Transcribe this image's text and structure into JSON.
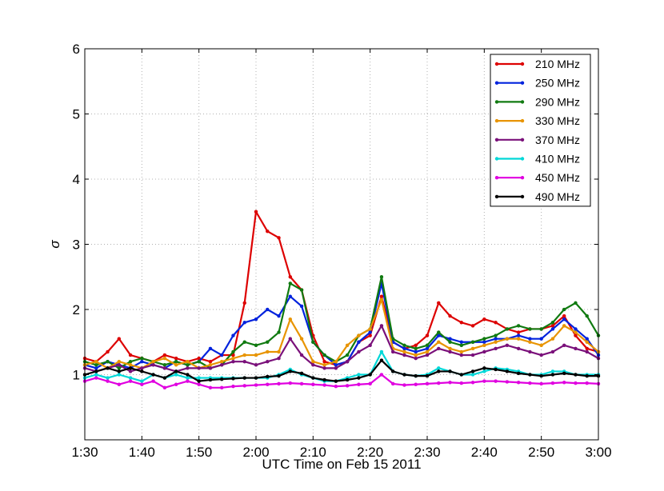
{
  "chart_data": {
    "type": "line",
    "title": "",
    "xlabel": "UTC Time on Feb 15 2011",
    "ylabel": "σ",
    "xlim": [
      0,
      90
    ],
    "ylim": [
      0,
      6
    ],
    "xticks": [
      0,
      10,
      20,
      30,
      40,
      50,
      60,
      70,
      80,
      90
    ],
    "xtick_labels": [
      "1:30",
      "1:40",
      "1:50",
      "2:00",
      "2:10",
      "2:20",
      "2:30",
      "2:40",
      "2:50",
      "3:00"
    ],
    "yticks": [
      1,
      2,
      3,
      4,
      5,
      6
    ],
    "ytick_labels": [
      "1",
      "2",
      "3",
      "4",
      "5",
      "6"
    ],
    "grid": true,
    "legend_position": "top-right",
    "x_units": "minutes after 1:30 UTC",
    "series": [
      {
        "name": "210 MHz",
        "color": "#dd0000",
        "x": [
          0,
          2,
          4,
          6,
          8,
          10,
          12,
          14,
          16,
          18,
          20,
          22,
          24,
          26,
          28,
          30,
          32,
          34,
          36,
          38,
          40,
          42,
          44,
          46,
          48,
          50,
          52,
          54,
          56,
          58,
          60,
          62,
          64,
          66,
          68,
          70,
          72,
          74,
          76,
          78,
          80,
          82,
          84,
          86,
          88,
          90
        ],
        "y": [
          1.25,
          1.2,
          1.35,
          1.55,
          1.3,
          1.25,
          1.2,
          1.3,
          1.25,
          1.2,
          1.25,
          1.2,
          1.3,
          1.3,
          2.1,
          3.5,
          3.2,
          3.1,
          2.5,
          2.3,
          1.6,
          1.2,
          1.15,
          1.2,
          1.5,
          1.6,
          2.2,
          1.5,
          1.4,
          1.45,
          1.6,
          2.1,
          1.9,
          1.8,
          1.75,
          1.85,
          1.8,
          1.7,
          1.65,
          1.7,
          1.7,
          1.75,
          1.9,
          1.6,
          1.4,
          1.35
        ]
      },
      {
        "name": "250 MHz",
        "color": "#0022dd",
        "x": [
          0,
          2,
          4,
          6,
          8,
          10,
          12,
          14,
          16,
          18,
          20,
          22,
          24,
          26,
          28,
          30,
          32,
          34,
          36,
          38,
          40,
          42,
          44,
          46,
          48,
          50,
          52,
          54,
          56,
          58,
          60,
          62,
          64,
          66,
          68,
          70,
          72,
          74,
          76,
          78,
          80,
          82,
          84,
          86,
          88,
          90
        ],
        "y": [
          1.15,
          1.1,
          1.2,
          1.15,
          1.1,
          1.2,
          1.15,
          1.1,
          1.2,
          1.15,
          1.2,
          1.4,
          1.3,
          1.6,
          1.8,
          1.85,
          2.0,
          1.9,
          2.2,
          2.05,
          1.5,
          1.3,
          1.15,
          1.2,
          1.5,
          1.65,
          2.4,
          1.5,
          1.4,
          1.35,
          1.4,
          1.6,
          1.55,
          1.5,
          1.5,
          1.5,
          1.55,
          1.55,
          1.6,
          1.55,
          1.55,
          1.7,
          1.85,
          1.7,
          1.55,
          1.3
        ]
      },
      {
        "name": "290 MHz",
        "color": "#107a10",
        "x": [
          0,
          2,
          4,
          6,
          8,
          10,
          12,
          14,
          16,
          18,
          20,
          22,
          24,
          26,
          28,
          30,
          32,
          34,
          36,
          38,
          40,
          42,
          44,
          46,
          48,
          50,
          52,
          54,
          56,
          58,
          60,
          62,
          64,
          66,
          68,
          70,
          72,
          74,
          76,
          78,
          80,
          82,
          84,
          86,
          88,
          90
        ],
        "y": [
          1.2,
          1.15,
          1.2,
          1.1,
          1.2,
          1.25,
          1.2,
          1.15,
          1.2,
          1.15,
          1.2,
          1.1,
          1.15,
          1.35,
          1.5,
          1.45,
          1.5,
          1.65,
          2.4,
          2.3,
          1.5,
          1.3,
          1.2,
          1.3,
          1.6,
          1.7,
          2.5,
          1.55,
          1.45,
          1.4,
          1.45,
          1.65,
          1.5,
          1.45,
          1.5,
          1.55,
          1.6,
          1.7,
          1.75,
          1.7,
          1.7,
          1.8,
          2.0,
          2.1,
          1.9,
          1.6
        ]
      },
      {
        "name": "330 MHz",
        "color": "#e89400",
        "x": [
          0,
          2,
          4,
          6,
          8,
          10,
          12,
          14,
          16,
          18,
          20,
          22,
          24,
          26,
          28,
          30,
          32,
          34,
          36,
          38,
          40,
          42,
          44,
          46,
          48,
          50,
          52,
          54,
          56,
          58,
          60,
          62,
          64,
          66,
          68,
          70,
          72,
          74,
          76,
          78,
          80,
          82,
          84,
          86,
          88,
          90
        ],
        "y": [
          1.15,
          1.2,
          1.1,
          1.2,
          1.15,
          1.1,
          1.2,
          1.25,
          1.15,
          1.2,
          1.1,
          1.15,
          1.2,
          1.25,
          1.3,
          1.3,
          1.35,
          1.35,
          1.85,
          1.55,
          1.2,
          1.15,
          1.2,
          1.45,
          1.6,
          1.7,
          2.15,
          1.4,
          1.35,
          1.3,
          1.35,
          1.5,
          1.4,
          1.35,
          1.4,
          1.45,
          1.5,
          1.55,
          1.55,
          1.5,
          1.45,
          1.55,
          1.75,
          1.65,
          1.5,
          1.35
        ]
      },
      {
        "name": "370 MHz",
        "color": "#7a107a",
        "x": [
          0,
          2,
          4,
          6,
          8,
          10,
          12,
          14,
          16,
          18,
          20,
          22,
          24,
          26,
          28,
          30,
          32,
          34,
          36,
          38,
          40,
          42,
          44,
          46,
          48,
          50,
          52,
          54,
          56,
          58,
          60,
          62,
          64,
          66,
          68,
          70,
          72,
          74,
          76,
          78,
          80,
          82,
          84,
          86,
          88,
          90
        ],
        "y": [
          1.1,
          1.05,
          1.1,
          1.15,
          1.05,
          1.1,
          1.15,
          1.1,
          1.05,
          1.1,
          1.1,
          1.1,
          1.15,
          1.2,
          1.2,
          1.15,
          1.2,
          1.25,
          1.55,
          1.3,
          1.15,
          1.1,
          1.1,
          1.2,
          1.35,
          1.45,
          1.75,
          1.35,
          1.3,
          1.25,
          1.3,
          1.4,
          1.35,
          1.3,
          1.3,
          1.35,
          1.4,
          1.45,
          1.4,
          1.35,
          1.3,
          1.35,
          1.45,
          1.4,
          1.35,
          1.25
        ]
      },
      {
        "name": "410 MHz",
        "color": "#00d8d8",
        "x": [
          0,
          2,
          4,
          6,
          8,
          10,
          12,
          14,
          16,
          18,
          20,
          22,
          24,
          26,
          28,
          30,
          32,
          34,
          36,
          38,
          40,
          42,
          44,
          46,
          48,
          50,
          52,
          54,
          56,
          58,
          60,
          62,
          64,
          66,
          68,
          70,
          72,
          74,
          76,
          78,
          80,
          82,
          84,
          86,
          88,
          90
        ],
        "y": [
          0.95,
          1.0,
          0.95,
          1.0,
          0.95,
          0.9,
          1.0,
          0.95,
          1.0,
          0.95,
          0.95,
          0.95,
          0.95,
          0.95,
          0.95,
          0.95,
          0.95,
          1.0,
          1.08,
          1.0,
          0.95,
          0.9,
          0.9,
          0.95,
          1.0,
          1.0,
          1.35,
          1.05,
          1.0,
          0.98,
          1.0,
          1.1,
          1.05,
          1.0,
          1.0,
          1.05,
          1.1,
          1.08,
          1.05,
          1.0,
          1.0,
          1.05,
          1.05,
          1.0,
          1.0,
          1.0
        ]
      },
      {
        "name": "450 MHz",
        "color": "#e000e0",
        "x": [
          0,
          2,
          4,
          6,
          8,
          10,
          12,
          14,
          16,
          18,
          20,
          22,
          24,
          26,
          28,
          30,
          32,
          34,
          36,
          38,
          40,
          42,
          44,
          46,
          48,
          50,
          52,
          54,
          56,
          58,
          60,
          62,
          64,
          66,
          68,
          70,
          72,
          74,
          76,
          78,
          80,
          82,
          84,
          86,
          88,
          90
        ],
        "y": [
          0.9,
          0.95,
          0.9,
          0.85,
          0.9,
          0.85,
          0.9,
          0.8,
          0.85,
          0.9,
          0.85,
          0.8,
          0.8,
          0.82,
          0.83,
          0.84,
          0.85,
          0.86,
          0.87,
          0.86,
          0.85,
          0.84,
          0.82,
          0.83,
          0.85,
          0.86,
          1.0,
          0.86,
          0.84,
          0.85,
          0.86,
          0.87,
          0.88,
          0.87,
          0.88,
          0.9,
          0.9,
          0.89,
          0.88,
          0.87,
          0.86,
          0.87,
          0.88,
          0.87,
          0.87,
          0.86
        ]
      },
      {
        "name": "490 MHz",
        "color": "#000000",
        "x": [
          0,
          2,
          4,
          6,
          8,
          10,
          12,
          14,
          16,
          18,
          20,
          22,
          24,
          26,
          28,
          30,
          32,
          34,
          36,
          38,
          40,
          42,
          44,
          46,
          48,
          50,
          52,
          54,
          56,
          58,
          60,
          62,
          64,
          66,
          68,
          70,
          72,
          74,
          76,
          78,
          80,
          82,
          84,
          86,
          88,
          90
        ],
        "y": [
          1.0,
          1.05,
          1.1,
          1.05,
          1.1,
          1.05,
          1.0,
          0.95,
          1.05,
          1.0,
          0.9,
          0.92,
          0.93,
          0.94,
          0.95,
          0.95,
          0.97,
          0.98,
          1.05,
          1.02,
          0.95,
          0.92,
          0.9,
          0.92,
          0.95,
          1.0,
          1.22,
          1.05,
          1.0,
          0.98,
          0.98,
          1.05,
          1.05,
          1.0,
          1.05,
          1.1,
          1.08,
          1.05,
          1.02,
          1.0,
          0.98,
          1.0,
          1.02,
          1.0,
          0.98,
          0.98
        ]
      }
    ]
  }
}
